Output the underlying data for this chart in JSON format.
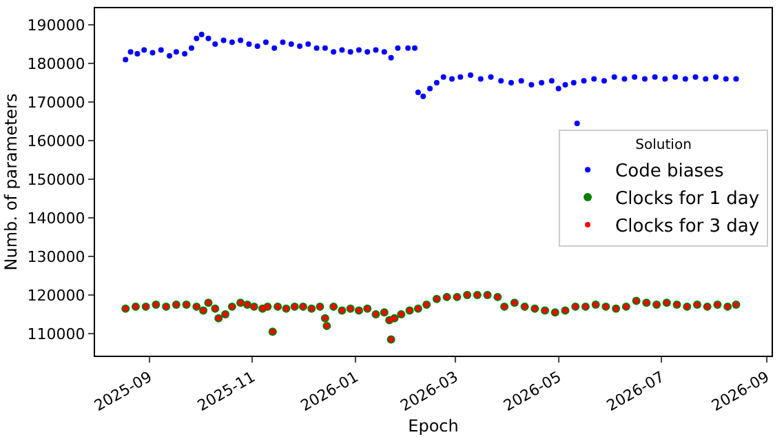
{
  "chart_data": {
    "type": "scatter",
    "xlabel": "Epoch",
    "ylabel": "Numb. of parameters",
    "legend_title": "Solution",
    "legend": "right",
    "marker": "circle",
    "grid": false,
    "xlim": [
      "2025-07-31",
      "2026-09-04"
    ],
    "xticks": [
      "2025-09",
      "2025-11",
      "2026-01",
      "2026-03",
      "2026-05",
      "2026-07",
      "2026-09"
    ],
    "ylim": [
      104300,
      194300
    ],
    "yticks": [
      110000,
      120000,
      130000,
      140000,
      150000,
      160000,
      170000,
      180000,
      190000
    ],
    "series": [
      {
        "name": "Code biases",
        "color": "#0000ff",
        "x": [
          "2025-08-18",
          "2025-08-21",
          "2025-08-25",
          "2025-08-29",
          "2025-09-03",
          "2025-09-08",
          "2025-09-13",
          "2025-09-17",
          "2025-09-22",
          "2025-09-26",
          "2025-09-29",
          "2025-10-02",
          "2025-10-06",
          "2025-10-10",
          "2025-10-15",
          "2025-10-20",
          "2025-10-25",
          "2025-10-30",
          "2025-11-04",
          "2025-11-09",
          "2025-11-14",
          "2025-11-19",
          "2025-11-24",
          "2025-11-29",
          "2025-12-04",
          "2025-12-09",
          "2025-12-14",
          "2025-12-19",
          "2025-12-24",
          "2025-12-29",
          "2026-01-03",
          "2026-01-08",
          "2026-01-13",
          "2026-01-18",
          "2026-01-22",
          "2026-01-26",
          "2026-02-01",
          "2026-02-05",
          "2026-02-07",
          "2026-02-10",
          "2026-02-14",
          "2026-02-18",
          "2026-02-22",
          "2026-02-27",
          "2026-03-04",
          "2026-03-10",
          "2026-03-16",
          "2026-03-22",
          "2026-03-28",
          "2026-04-03",
          "2026-04-09",
          "2026-04-15",
          "2026-04-21",
          "2026-04-27",
          "2026-05-01",
          "2026-05-05",
          "2026-05-10",
          "2026-05-12",
          "2026-05-16",
          "2026-05-22",
          "2026-05-28",
          "2026-06-03",
          "2026-06-09",
          "2026-06-15",
          "2026-06-21",
          "2026-06-27",
          "2026-07-03",
          "2026-07-09",
          "2026-07-15",
          "2026-07-21",
          "2026-07-27",
          "2026-08-02",
          "2026-08-08",
          "2026-08-14"
        ],
        "values": [
          181000,
          183000,
          182500,
          183500,
          182800,
          183500,
          182000,
          183000,
          182500,
          184000,
          186500,
          187500,
          186500,
          185000,
          186000,
          185500,
          186000,
          185000,
          184500,
          185500,
          184000,
          185500,
          185000,
          184500,
          185000,
          184000,
          184000,
          183000,
          183500,
          183000,
          183500,
          183000,
          183500,
          183000,
          181500,
          184000,
          184000,
          184000,
          172500,
          171500,
          173500,
          175000,
          176500,
          176000,
          176500,
          177000,
          176000,
          176500,
          175500,
          175000,
          175500,
          174500,
          175000,
          175500,
          173500,
          174500,
          175000,
          164500,
          175500,
          176000,
          175500,
          176500,
          176000,
          176500,
          176000,
          176500,
          176000,
          176500,
          176000,
          176500,
          176000,
          176500,
          176000,
          176000
        ]
      },
      {
        "name": "Clocks for 1 day",
        "color": "#008000",
        "x": [
          "2025-08-18",
          "2025-08-24",
          "2025-08-30",
          "2025-09-05",
          "2025-09-11",
          "2025-09-17",
          "2025-09-23",
          "2025-09-29",
          "2025-10-03",
          "2025-10-06",
          "2025-10-10",
          "2025-10-12",
          "2025-10-16",
          "2025-10-20",
          "2025-10-25",
          "2025-10-29",
          "2025-11-02",
          "2025-11-07",
          "2025-11-10",
          "2025-11-13",
          "2025-11-16",
          "2025-11-21",
          "2025-11-26",
          "2025-12-01",
          "2025-12-06",
          "2025-12-11",
          "2025-12-14",
          "2025-12-15",
          "2025-12-19",
          "2025-12-24",
          "2025-12-29",
          "2026-01-03",
          "2026-01-08",
          "2026-01-13",
          "2026-01-18",
          "2026-01-21",
          "2026-01-22",
          "2026-01-24",
          "2026-01-28",
          "2026-02-02",
          "2026-02-07",
          "2026-02-12",
          "2026-02-18",
          "2026-02-24",
          "2026-03-02",
          "2026-03-08",
          "2026-03-14",
          "2026-03-20",
          "2026-03-26",
          "2026-03-30",
          "2026-04-05",
          "2026-04-11",
          "2026-04-17",
          "2026-04-23",
          "2026-04-29",
          "2026-05-05",
          "2026-05-11",
          "2026-05-17",
          "2026-05-23",
          "2026-05-29",
          "2026-06-04",
          "2026-06-10",
          "2026-06-16",
          "2026-06-22",
          "2026-06-28",
          "2026-07-04",
          "2026-07-10",
          "2026-07-16",
          "2026-07-22",
          "2026-07-28",
          "2026-08-03",
          "2026-08-09",
          "2026-08-14"
        ],
        "values": [
          116500,
          117000,
          117000,
          117500,
          117000,
          117500,
          117500,
          117000,
          116000,
          118000,
          116500,
          114000,
          115000,
          117000,
          118000,
          117500,
          117000,
          116500,
          117000,
          110500,
          117000,
          116500,
          117000,
          117000,
          116500,
          117000,
          114000,
          112000,
          117000,
          116000,
          116500,
          116000,
          116500,
          115000,
          115500,
          113500,
          108500,
          114000,
          115000,
          116000,
          116500,
          117500,
          119000,
          119500,
          119500,
          120000,
          120000,
          120000,
          119500,
          117000,
          118000,
          117000,
          116500,
          116000,
          115500,
          116000,
          117000,
          117000,
          117500,
          117000,
          116500,
          117000,
          118500,
          118000,
          117500,
          118000,
          117500,
          117000,
          117500,
          117000,
          117500,
          117000,
          117500
        ]
      },
      {
        "name": "Clocks for 3 day",
        "color": "#ff0000",
        "x": [
          "2025-08-18",
          "2025-08-24",
          "2025-08-30",
          "2025-09-05",
          "2025-09-11",
          "2025-09-17",
          "2025-09-23",
          "2025-09-29",
          "2025-10-03",
          "2025-10-06",
          "2025-10-10",
          "2025-10-12",
          "2025-10-16",
          "2025-10-20",
          "2025-10-25",
          "2025-10-29",
          "2025-11-02",
          "2025-11-07",
          "2025-11-10",
          "2025-11-13",
          "2025-11-16",
          "2025-11-21",
          "2025-11-26",
          "2025-12-01",
          "2025-12-06",
          "2025-12-11",
          "2025-12-14",
          "2025-12-15",
          "2025-12-19",
          "2025-12-24",
          "2025-12-29",
          "2026-01-03",
          "2026-01-08",
          "2026-01-13",
          "2026-01-18",
          "2026-01-21",
          "2026-01-22",
          "2026-01-24",
          "2026-01-28",
          "2026-02-02",
          "2026-02-07",
          "2026-02-12",
          "2026-02-18",
          "2026-02-24",
          "2026-03-02",
          "2026-03-08",
          "2026-03-14",
          "2026-03-20",
          "2026-03-26",
          "2026-03-30",
          "2026-04-05",
          "2026-04-11",
          "2026-04-17",
          "2026-04-23",
          "2026-04-29",
          "2026-05-05",
          "2026-05-11",
          "2026-05-17",
          "2026-05-23",
          "2026-05-29",
          "2026-06-04",
          "2026-06-10",
          "2026-06-16",
          "2026-06-22",
          "2026-06-28",
          "2026-07-04",
          "2026-07-10",
          "2026-07-16",
          "2026-07-22",
          "2026-07-28",
          "2026-08-03",
          "2026-08-09",
          "2026-08-14"
        ],
        "values": [
          116500,
          117000,
          117000,
          117500,
          117000,
          117500,
          117500,
          117000,
          116000,
          118000,
          116500,
          114000,
          115000,
          117000,
          118000,
          117500,
          117000,
          116500,
          117000,
          110500,
          117000,
          116500,
          117000,
          117000,
          116500,
          117000,
          114000,
          112000,
          117000,
          116000,
          116500,
          116000,
          116500,
          115000,
          115500,
          113500,
          108500,
          114000,
          115000,
          116000,
          116500,
          117500,
          119000,
          119500,
          119500,
          120000,
          120000,
          120000,
          119500,
          117000,
          118000,
          117000,
          116500,
          116000,
          115500,
          116000,
          117000,
          117000,
          117500,
          117000,
          116500,
          117000,
          118500,
          118000,
          117500,
          118000,
          117500,
          117000,
          117500,
          117000,
          117500,
          117000,
          117500
        ]
      }
    ]
  }
}
